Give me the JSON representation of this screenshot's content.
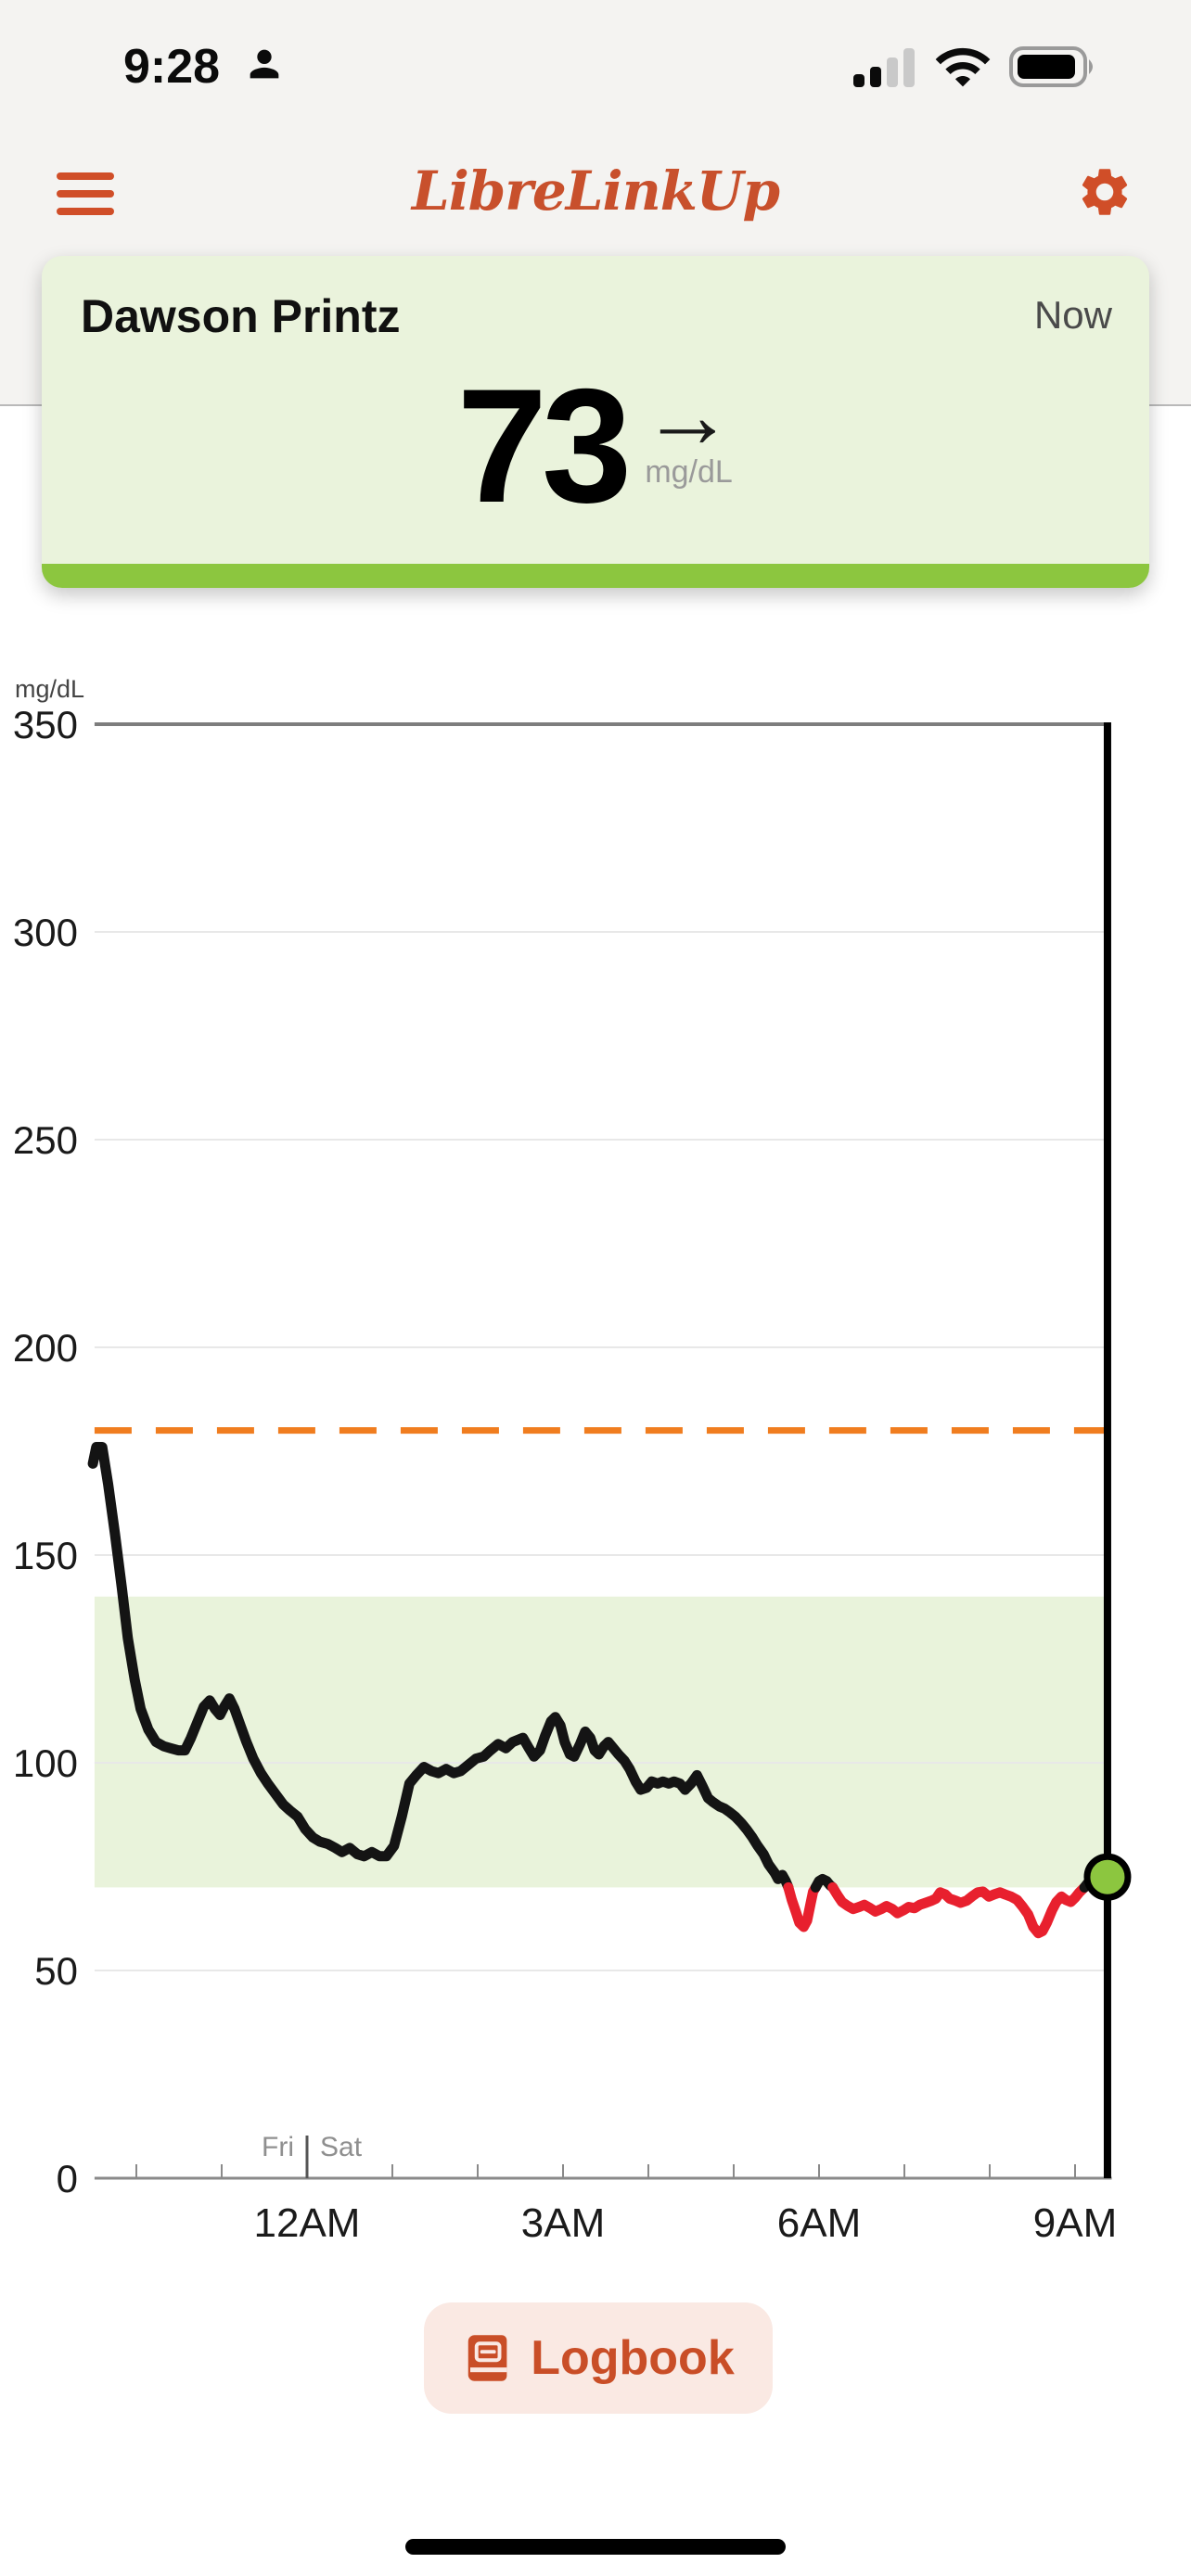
{
  "status_bar": {
    "time": "9:28",
    "icons": [
      "person-icon",
      "cellular-signal-icon",
      "wifi-icon",
      "battery-icon"
    ],
    "cellular_filled_bars": 2,
    "cellular_total_bars": 4,
    "wifi_strength": "full",
    "battery_percent": 90
  },
  "header": {
    "title": "LibreLinkUp",
    "menu_icon": "hamburger-menu-icon",
    "settings_icon": "gear-icon",
    "accent_color": "#c8502c"
  },
  "patient_card": {
    "name": "Dawson Printz",
    "timestamp_label": "Now",
    "value": "73",
    "unit": "mg/dL",
    "trend_arrow": "→",
    "trend": "steady",
    "in_range": true,
    "background": "#eaf3dc",
    "range_bar_color": "#8cc63f"
  },
  "logbook": {
    "label": "Logbook",
    "icon": "book-icon",
    "background": "#fae9e3",
    "color": "#c94e27"
  },
  "chart_data": {
    "type": "line",
    "title": "",
    "ylabel": "mg/dL",
    "ylim": [
      0,
      350
    ],
    "yticks": [
      0,
      50,
      100,
      150,
      200,
      250,
      300,
      350
    ],
    "x_unit": "hours_from_saturday_midnight",
    "xlim": [
      -2.49,
      9.43
    ],
    "hour_ticks": [
      -2,
      -1,
      0,
      1,
      2,
      3,
      4,
      5,
      6,
      7,
      8,
      9
    ],
    "x_tick_labels": {
      "0": "12AM",
      "3": "3AM",
      "6": "6AM",
      "9": "9AM"
    },
    "day_boundary": {
      "hour": 0,
      "left_label": "Fri",
      "right_label": "Sat"
    },
    "high_threshold": 180,
    "target_range": [
      70,
      140
    ],
    "now_hour": 9.38,
    "current_value": 73,
    "grid": true,
    "legend": false,
    "low_cutoff": 70,
    "series": [
      {
        "name": "glucose",
        "unit": "mg/dL",
        "points": [
          [
            -2.51,
            172
          ],
          [
            -2.47,
            176
          ],
          [
            -2.4,
            176
          ],
          [
            -2.33,
            167
          ],
          [
            -2.25,
            155
          ],
          [
            -2.17,
            142
          ],
          [
            -2.1,
            130
          ],
          [
            -2.02,
            120
          ],
          [
            -1.95,
            113
          ],
          [
            -1.86,
            108
          ],
          [
            -1.77,
            105
          ],
          [
            -1.68,
            104
          ],
          [
            -1.6,
            103.5
          ],
          [
            -1.51,
            103
          ],
          [
            -1.43,
            103
          ],
          [
            -1.36,
            106
          ],
          [
            -1.28,
            110
          ],
          [
            -1.21,
            113.5
          ],
          [
            -1.14,
            115
          ],
          [
            -1.08,
            113
          ],
          [
            -1.02,
            111.5
          ],
          [
            -0.97,
            113.5
          ],
          [
            -0.91,
            115.5
          ],
          [
            -0.85,
            113
          ],
          [
            -0.78,
            109
          ],
          [
            -0.71,
            105
          ],
          [
            -0.63,
            101
          ],
          [
            -0.54,
            97.5
          ],
          [
            -0.46,
            95
          ],
          [
            -0.37,
            92.5
          ],
          [
            -0.28,
            90
          ],
          [
            -0.2,
            88.5
          ],
          [
            -0.11,
            87
          ],
          [
            -0.02,
            84
          ],
          [
            0.07,
            82
          ],
          [
            0.15,
            81
          ],
          [
            0.24,
            80.5
          ],
          [
            0.33,
            79.5
          ],
          [
            0.41,
            78.5
          ],
          [
            0.5,
            79.5
          ],
          [
            0.59,
            78
          ],
          [
            0.67,
            77.5
          ],
          [
            0.76,
            78.5
          ],
          [
            0.85,
            77.5
          ],
          [
            0.93,
            77.5
          ],
          [
            1.02,
            80
          ],
          [
            1.11,
            87
          ],
          [
            1.2,
            95
          ],
          [
            1.28,
            97
          ],
          [
            1.37,
            99
          ],
          [
            1.46,
            98
          ],
          [
            1.54,
            97.5
          ],
          [
            1.63,
            98.5
          ],
          [
            1.72,
            97.5
          ],
          [
            1.8,
            98
          ],
          [
            1.89,
            99.5
          ],
          [
            1.98,
            101
          ],
          [
            2.07,
            101.5
          ],
          [
            2.15,
            103
          ],
          [
            2.24,
            104.5
          ],
          [
            2.33,
            103.5
          ],
          [
            2.41,
            105
          ],
          [
            2.47,
            105.5
          ],
          [
            2.53,
            106
          ],
          [
            2.6,
            103.5
          ],
          [
            2.66,
            101.5
          ],
          [
            2.73,
            103
          ],
          [
            2.79,
            106.5
          ],
          [
            2.86,
            110
          ],
          [
            2.91,
            111
          ],
          [
            2.97,
            109
          ],
          [
            3.02,
            105
          ],
          [
            3.08,
            102
          ],
          [
            3.13,
            101.5
          ],
          [
            3.2,
            104.5
          ],
          [
            3.26,
            107.5
          ],
          [
            3.32,
            106
          ],
          [
            3.37,
            103
          ],
          [
            3.42,
            102
          ],
          [
            3.48,
            104
          ],
          [
            3.53,
            105
          ],
          [
            3.59,
            103.5
          ],
          [
            3.65,
            102
          ],
          [
            3.72,
            100.5
          ],
          [
            3.78,
            98.5
          ],
          [
            3.85,
            95.5
          ],
          [
            3.91,
            93.5
          ],
          [
            3.98,
            94
          ],
          [
            4.04,
            95.5
          ],
          [
            4.11,
            95
          ],
          [
            4.17,
            95.5
          ],
          [
            4.24,
            95
          ],
          [
            4.3,
            95.5
          ],
          [
            4.37,
            95
          ],
          [
            4.43,
            93.5
          ],
          [
            4.5,
            95
          ],
          [
            4.57,
            97
          ],
          [
            4.63,
            94.5
          ],
          [
            4.7,
            91.5
          ],
          [
            4.76,
            90.5
          ],
          [
            4.83,
            89.5
          ],
          [
            4.89,
            89
          ],
          [
            4.96,
            88
          ],
          [
            5.02,
            87
          ],
          [
            5.09,
            85.5
          ],
          [
            5.15,
            84
          ],
          [
            5.22,
            82
          ],
          [
            5.28,
            80
          ],
          [
            5.35,
            78
          ],
          [
            5.41,
            75.5
          ],
          [
            5.48,
            73.5
          ],
          [
            5.52,
            72
          ],
          [
            5.57,
            73
          ],
          [
            5.61,
            71.5
          ],
          [
            5.64,
            70
          ],
          [
            5.68,
            67
          ],
          [
            5.73,
            64
          ],
          [
            5.77,
            61.5
          ],
          [
            5.82,
            60.5
          ],
          [
            5.86,
            62
          ],
          [
            5.9,
            66
          ],
          [
            5.93,
            69
          ],
          [
            5.96,
            70
          ],
          [
            6.0,
            71.5
          ],
          [
            6.04,
            72
          ],
          [
            6.09,
            71.5
          ],
          [
            6.13,
            70.5
          ],
          [
            6.16,
            70
          ],
          [
            6.22,
            68
          ],
          [
            6.27,
            66.5
          ],
          [
            6.34,
            65.5
          ],
          [
            6.4,
            64.8
          ],
          [
            6.47,
            65.3
          ],
          [
            6.53,
            65.8
          ],
          [
            6.6,
            65
          ],
          [
            6.66,
            64.2
          ],
          [
            6.73,
            64.8
          ],
          [
            6.79,
            65.5
          ],
          [
            6.86,
            64.8
          ],
          [
            6.92,
            63.8
          ],
          [
            6.99,
            64.5
          ],
          [
            7.05,
            65.3
          ],
          [
            7.12,
            65
          ],
          [
            7.18,
            65.8
          ],
          [
            7.25,
            66.3
          ],
          [
            7.32,
            66.8
          ],
          [
            7.37,
            67.3
          ],
          [
            7.42,
            68.8
          ],
          [
            7.48,
            68.3
          ],
          [
            7.53,
            67.3
          ],
          [
            7.6,
            66.8
          ],
          [
            7.66,
            66.3
          ],
          [
            7.73,
            66.8
          ],
          [
            7.79,
            67.8
          ],
          [
            7.86,
            68.8
          ],
          [
            7.92,
            69
          ],
          [
            7.99,
            67.8
          ],
          [
            8.05,
            68.3
          ],
          [
            8.12,
            68.8
          ],
          [
            8.18,
            68.3
          ],
          [
            8.25,
            67.8
          ],
          [
            8.32,
            67
          ],
          [
            8.38,
            65.5
          ],
          [
            8.45,
            63.5
          ],
          [
            8.51,
            60.5
          ],
          [
            8.57,
            59
          ],
          [
            8.62,
            59.5
          ],
          [
            8.67,
            61.5
          ],
          [
            8.73,
            64.5
          ],
          [
            8.78,
            66.5
          ],
          [
            8.84,
            67.8
          ],
          [
            8.89,
            67
          ],
          [
            8.95,
            66.5
          ],
          [
            9.0,
            67.5
          ],
          [
            9.05,
            68.8
          ],
          [
            9.11,
            70
          ],
          [
            9.16,
            71.3
          ],
          [
            9.21,
            72
          ],
          [
            9.27,
            71.5
          ],
          [
            9.32,
            71.8
          ],
          [
            9.38,
            72.5
          ]
        ]
      }
    ],
    "colors": {
      "line": "#141414",
      "low": "#e8202e",
      "band": "#e9f3db",
      "high_line": "#f07d1f",
      "grid": "#e8e8e8",
      "grid_top": "#7d7d7d",
      "axis": "#8a8a8a",
      "dot": "#8cc63f",
      "now_line": "#000000",
      "label": "#1a1a1a",
      "muted": "#8f8f8f"
    }
  }
}
